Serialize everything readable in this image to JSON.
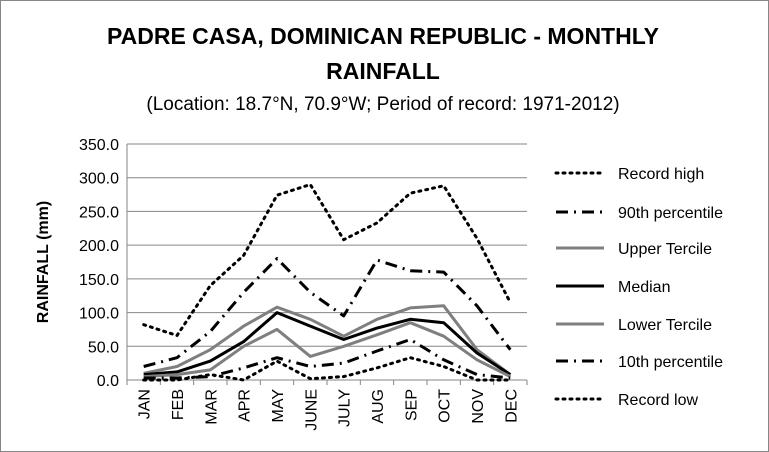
{
  "chart_data": {
    "type": "line",
    "title_line1": "PADRE CASA, DOMINICAN REPUBLIC - MONTHLY",
    "title_line2": "RAINFALL",
    "subtitle": "(Location: 18.7°N, 70.9°W; Period of record: 1971-2012)",
    "ylabel": "RAINFALL (mm)",
    "xlabel": "",
    "ylim": [
      0,
      350
    ],
    "yticks": [
      "0.0",
      "50.0",
      "100.0",
      "150.0",
      "200.0",
      "250.0",
      "300.0",
      "350.0"
    ],
    "categories": [
      "JAN",
      "FEB",
      "MAR",
      "APR",
      "MAY",
      "JUNE",
      "JULY",
      "AUG",
      "SEP",
      "OCT",
      "NOV",
      "DEC"
    ],
    "grid": "horizontal",
    "legend_position": "right",
    "series": [
      {
        "name": "Record high",
        "color": "#000000",
        "style": "dotted",
        "values": [
          82,
          66,
          140,
          185,
          274,
          290,
          208,
          233,
          277,
          288,
          210,
          115
        ]
      },
      {
        "name": "90th percentile",
        "color": "#000000",
        "style": "dashdot",
        "values": [
          20,
          33,
          72,
          130,
          180,
          130,
          95,
          178,
          162,
          160,
          110,
          45
        ]
      },
      {
        "name": "Upper Tercile",
        "color": "#7f7f7f",
        "style": "solid",
        "values": [
          10,
          20,
          45,
          80,
          108,
          90,
          65,
          90,
          107,
          110,
          45,
          8
        ]
      },
      {
        "name": "Median",
        "color": "#000000",
        "style": "solid",
        "values": [
          8,
          12,
          28,
          57,
          100,
          80,
          60,
          77,
          90,
          85,
          40,
          8
        ]
      },
      {
        "name": "Lower Tercile",
        "color": "#7f7f7f",
        "style": "solid",
        "values": [
          5,
          8,
          15,
          50,
          75,
          35,
          50,
          67,
          85,
          65,
          30,
          5
        ]
      },
      {
        "name": "10th percentile",
        "color": "#000000",
        "style": "dashdot",
        "values": [
          3,
          3,
          5,
          18,
          33,
          20,
          25,
          43,
          60,
          30,
          8,
          3
        ]
      },
      {
        "name": "Record low",
        "color": "#000000",
        "style": "dotted",
        "values": [
          0,
          0,
          8,
          0,
          28,
          2,
          5,
          18,
          33,
          20,
          0,
          0
        ]
      }
    ]
  }
}
